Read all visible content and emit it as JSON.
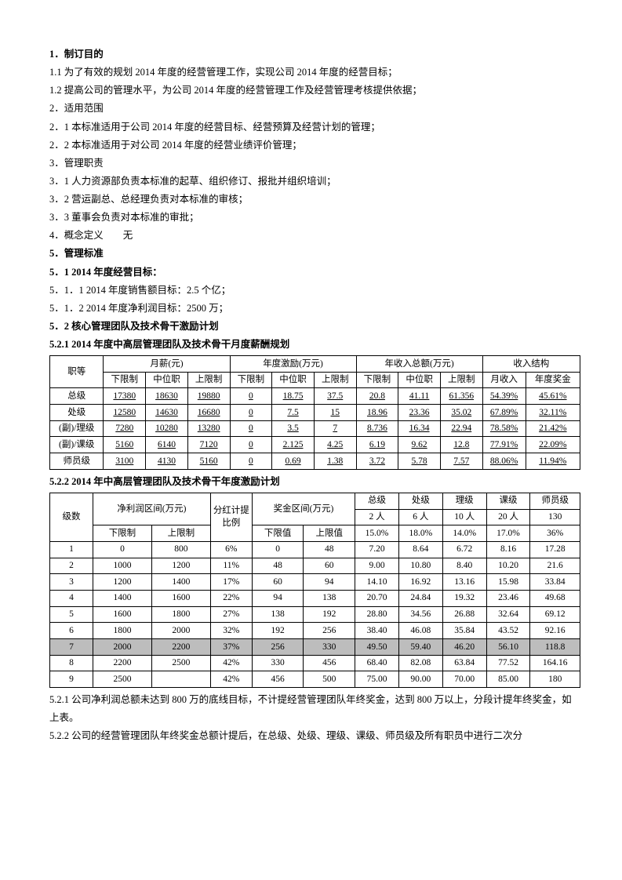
{
  "paras": [
    {
      "t": "1．制订目的",
      "b": true
    },
    {
      "t": "1.1 为了有效的规划 2014 年度的经营管理工作，实现公司 2014 年度的经营目标；",
      "b": false
    },
    {
      "t": "1.2 提高公司的管理水平，为公司 2014 年度的经营管理工作及经营管理考核提供依据；",
      "b": false
    },
    {
      "t": "2．适用范围",
      "b": false
    },
    {
      "t": "2．1 本标准适用于公司 2014 年度的经营目标、经营预算及经营计划的管理；",
      "b": false
    },
    {
      "t": "2．2 本标准适用于对公司 2014 年度的经营业绩评价管理；",
      "b": false
    },
    {
      "t": "3．管理职责",
      "b": false
    },
    {
      "t": "3．1 人力资源部负责本标准的起草、组织修订、报批并组织培训；",
      "b": false
    },
    {
      "t": "3．2 营运副总、总经理负责对本标准的审核；",
      "b": false
    },
    {
      "t": "3．3 董事会负责对本标准的审批；",
      "b": false
    },
    {
      "t": "4．概念定义　　无",
      "b": false
    },
    {
      "t": "5．管理标准",
      "b": true
    },
    {
      "t": "5．1 2014 年度经营目标：",
      "b": true
    },
    {
      "t": "5．1．1 2014 年度销售额目标：2.5 个亿；",
      "b": false
    },
    {
      "t": "5．1．2 2014 年度净利润目标：2500 万；",
      "b": false
    },
    {
      "t": "5．2 核心管理团队及技术骨干激励计划",
      "b": true
    },
    {
      "t": "5.2.1 2014 年度中高层管理团队及技术骨干月度薪酬规划",
      "b": true
    }
  ],
  "table1": {
    "header_groups": [
      "职等",
      "月薪(元)",
      "年度激励(万元)",
      "年收入总额(万元)",
      "收入结构"
    ],
    "sub_headers": [
      "下限制",
      "中位职",
      "上限制",
      "下限制",
      "中位职",
      "上限制",
      "下限制",
      "中位职",
      "上限制",
      "月收入",
      "年度奖金"
    ],
    "rows": [
      [
        "总级",
        "17380",
        "18630",
        "19880",
        "0",
        "18.75",
        "37.5",
        "20.8",
        "41.11",
        "61.356",
        "54.39%",
        "45.61%"
      ],
      [
        "处级",
        "12580",
        "14630",
        "16680",
        "0",
        "7.5",
        "15",
        "18.96",
        "23.36",
        "35.02",
        "67.89%",
        "32.11%"
      ],
      [
        "(副)/理级",
        "7280",
        "10280",
        "13280",
        "0",
        "3.5",
        "7",
        "8.736",
        "16.34",
        "22.94",
        "78.58%",
        "21.42%"
      ],
      [
        "(副)/课级",
        "5160",
        "6140",
        "7120",
        "0",
        "2.125",
        "4.25",
        "6.19",
        "9.62",
        "12.8",
        "77.91%",
        "22.09%"
      ],
      [
        "师员级",
        "3100",
        "4130",
        "5160",
        "0",
        "0.69",
        "1.38",
        "3.72",
        "5.78",
        "7.57",
        "88.06%",
        "11.94%"
      ]
    ]
  },
  "t2_title": "5.2.2 2014 年中高层管理团队及技术骨干年度激励计划",
  "table2": {
    "top_cols": [
      "级数",
      "净利润区间(万元)",
      "分红计提比例",
      "奖金区间(万元)",
      "总级",
      "处级",
      "理级",
      "课级",
      "师员级"
    ],
    "people": [
      "2 人",
      "6 人",
      "10 人",
      "20 人",
      "130"
    ],
    "sub2": [
      "下限制",
      "上限制",
      "",
      "下限值",
      "上限值",
      "15.0%",
      "18.0%",
      "14.0%",
      "17.0%",
      "36%"
    ],
    "rows": [
      {
        "c": [
          "1",
          "0",
          "800",
          "6%",
          "0",
          "48",
          "7.20",
          "8.64",
          "6.72",
          "8.16",
          "17.28"
        ],
        "hl": false
      },
      {
        "c": [
          "2",
          "1000",
          "1200",
          "11%",
          "48",
          "60",
          "9.00",
          "10.80",
          "8.40",
          "10.20",
          "21.6"
        ],
        "hl": false
      },
      {
        "c": [
          "3",
          "1200",
          "1400",
          "17%",
          "60",
          "94",
          "14.10",
          "16.92",
          "13.16",
          "15.98",
          "33.84"
        ],
        "hl": false
      },
      {
        "c": [
          "4",
          "1400",
          "1600",
          "22%",
          "94",
          "138",
          "20.70",
          "24.84",
          "19.32",
          "23.46",
          "49.68"
        ],
        "hl": false
      },
      {
        "c": [
          "5",
          "1600",
          "1800",
          "27%",
          "138",
          "192",
          "28.80",
          "34.56",
          "26.88",
          "32.64",
          "69.12"
        ],
        "hl": false
      },
      {
        "c": [
          "6",
          "1800",
          "2000",
          "32%",
          "192",
          "256",
          "38.40",
          "46.08",
          "35.84",
          "43.52",
          "92.16"
        ],
        "hl": false
      },
      {
        "c": [
          "7",
          "2000",
          "2200",
          "37%",
          "256",
          "330",
          "49.50",
          "59.40",
          "46.20",
          "56.10",
          "118.8"
        ],
        "hl": true
      },
      {
        "c": [
          "8",
          "2200",
          "2500",
          "42%",
          "330",
          "456",
          "68.40",
          "82.08",
          "63.84",
          "77.52",
          "164.16"
        ],
        "hl": false
      },
      {
        "c": [
          "9",
          "2500",
          "",
          "42%",
          "456",
          "500",
          "75.00",
          "90.00",
          "70.00",
          "85.00",
          "180"
        ],
        "hl": false
      }
    ]
  },
  "footer": [
    "5.2.1 公司净利润总额未达到 800 万的底线目标，不计提经营管理团队年终奖金，达到 800 万以上，分段计提年终奖金，如上表。",
    "5.2.2 公司的经营管理团队年终奖金总额计提后，在总级、处级、理级、课级、师员级及所有职员中进行二次分"
  ]
}
